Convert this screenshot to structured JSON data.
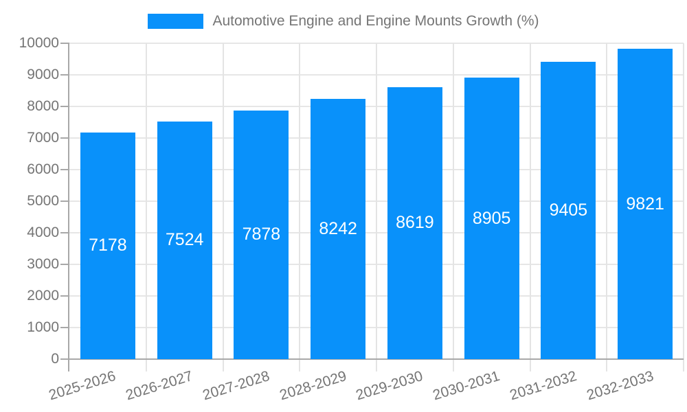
{
  "legend": {
    "label": "Automotive Engine and Engine Mounts Growth (%)",
    "swatch_color": "#0991fa",
    "position": "top"
  },
  "chart_data": {
    "type": "bar",
    "title": "Automotive Engine and Engine Mounts Growth (%)",
    "categories": [
      "2025-2026",
      "2026-2027",
      "2027-2028",
      "2028-2029",
      "2029-2030",
      "2030-2031",
      "2031-2032",
      "2032-2033"
    ],
    "values": [
      7178,
      7524,
      7878,
      8242,
      8619,
      8905,
      9405,
      9821
    ],
    "value_labels": [
      "7178",
      "7524",
      "7878",
      "8242",
      "8619",
      "8905",
      "9405",
      "9821"
    ],
    "xlabel": "",
    "ylabel": "",
    "ylim": [
      0,
      10000
    ],
    "yticks": [
      0,
      1000,
      2000,
      3000,
      4000,
      5000,
      6000,
      7000,
      8000,
      9000,
      10000
    ],
    "grid": true,
    "legend_position": "top",
    "bar_color": "#0991fa",
    "value_label_color": "#ffffff",
    "axis_text_color": "#757575",
    "gridline_color": "#e6e6e6",
    "axis_line_color": "#a8a8a8",
    "x_tick_rotation_deg": -17,
    "value_label_position": "inside-center"
  }
}
